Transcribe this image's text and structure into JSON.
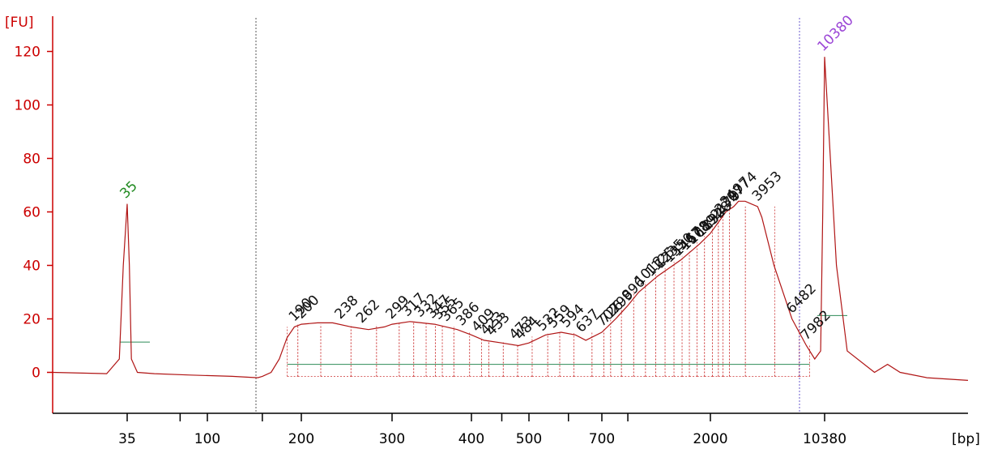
{
  "chart_data": {
    "type": "line",
    "title": "",
    "ylabel": "[FU]",
    "xlabel": "[bp]",
    "ylim": [
      -15,
      130
    ],
    "y_ticks": [
      0,
      20,
      40,
      60,
      80,
      100,
      120
    ],
    "y_tick_labels": [
      "0",
      "20",
      "40",
      "60",
      "80",
      "100",
      "120"
    ],
    "x_tick_labels": [
      "35",
      "100",
      "200",
      "300",
      "400",
      "500",
      "700",
      "2000",
      "10380"
    ],
    "series": [
      {
        "x_bp": [
          20,
          30,
          33,
          34,
          35,
          36,
          37,
          40,
          50,
          80,
          120,
          145,
          150,
          160,
          170,
          180,
          190,
          200,
          215,
          230,
          250,
          270,
          290,
          300,
          320,
          350,
          380,
          400,
          420,
          450,
          480,
          500,
          540,
          580,
          620,
          650,
          700,
          800,
          900,
          1000,
          1200,
          1500,
          1800,
          2000,
          2300,
          2500,
          2800,
          3000,
          3300,
          3600,
          3953,
          4200,
          5000,
          6482,
          7982,
          9000,
          9800,
          10100,
          10380,
          10700,
          11000,
          11800,
          12200,
          12600,
          13500,
          15000
        ],
        "y": [
          0,
          -0.5,
          5,
          40,
          63,
          40,
          5,
          0,
          -0.5,
          -1,
          -1.5,
          -2,
          -1.5,
          0,
          5,
          13,
          17,
          18,
          18.5,
          18.5,
          17,
          16,
          17,
          18,
          19,
          18,
          16,
          14,
          12,
          11,
          10,
          11,
          14,
          15,
          14,
          12,
          15,
          20,
          25,
          30,
          36,
          42,
          48,
          52,
          57,
          60,
          62,
          64,
          64,
          63,
          62,
          58,
          40,
          20,
          10,
          5,
          8,
          60,
          118,
          40,
          8,
          0,
          3,
          0,
          -2,
          -3
        ]
      }
    ],
    "markers": [
      {
        "label": "35",
        "x_bp": 35,
        "y": 63,
        "color": "#228B22"
      },
      {
        "label": "10380",
        "x_bp": 10380,
        "y": 118,
        "color": "#9B45D6"
      }
    ],
    "peak_labels": [
      "190",
      "200",
      "238",
      "262",
      "299",
      "317",
      "332",
      "347",
      "355",
      "365",
      "386",
      "409",
      "423",
      "433",
      "473",
      "484",
      "532",
      "559",
      "594",
      "637",
      "702",
      "726",
      "799",
      "896",
      "1012",
      "1125",
      "1235",
      "1350",
      "1467",
      "1578",
      "1689",
      "1832",
      "1948",
      "2179",
      "2307",
      "2497",
      "2774",
      "3953",
      "6482",
      "7982"
    ],
    "colors": {
      "axis": "#cc0000",
      "trace": "#b01515",
      "peak_region": "#cc3333",
      "baseline": "#2e8b57",
      "marker_line": "#555555",
      "upper_marker_line": "#6a5acd"
    }
  }
}
